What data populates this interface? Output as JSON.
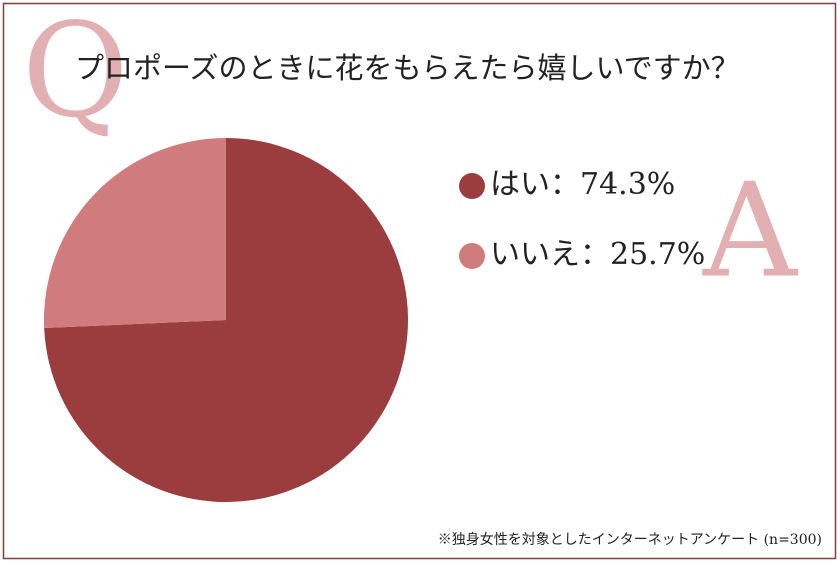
{
  "chart_data": {
    "type": "pie",
    "title": "プロポーズのときに花をもらえたら嬉しいですか？",
    "q_mark": "Q",
    "a_mark": "A",
    "categories": [
      "はい",
      "いいえ"
    ],
    "values": [
      74.3,
      25.7
    ],
    "value_labels": [
      "74.3%",
      "25.7%"
    ],
    "label_separator": "：",
    "colors": [
      "#9b3c3e",
      "#d07b7d"
    ],
    "letter_color": "#e2b0b2",
    "note": "※独身女性を対象としたインターネットアンケート (n=300)"
  }
}
